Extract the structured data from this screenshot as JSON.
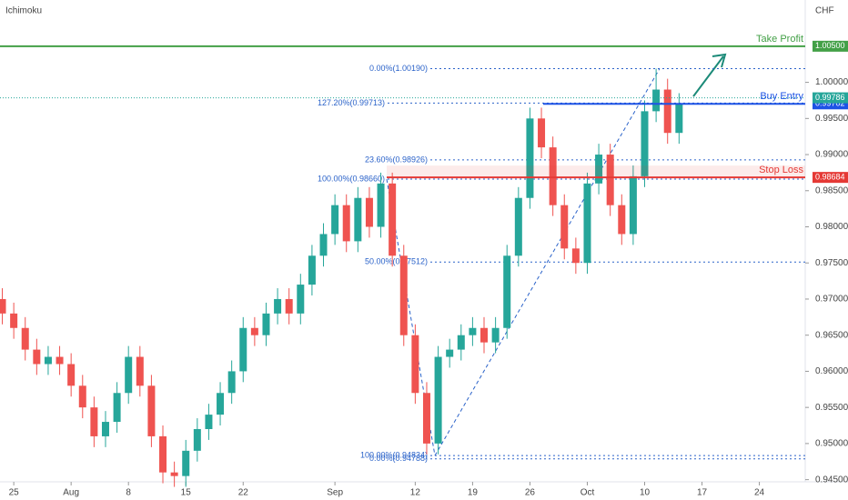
{
  "chart_data": {
    "type": "candlestick",
    "title": "Ichimoku",
    "currency": "CHF",
    "up_color": "#26a69a",
    "down_color": "#ef5350",
    "xlim": [
      -0.2,
      70
    ],
    "ylim": [
      0.9447,
      1.0114
    ],
    "xticks": [
      {
        "value": 1,
        "label": "25"
      },
      {
        "value": 6,
        "label": "Aug"
      },
      {
        "value": 11,
        "label": "8"
      },
      {
        "value": 16,
        "label": "15"
      },
      {
        "value": 21,
        "label": "22"
      },
      {
        "value": 29,
        "label": "Sep"
      },
      {
        "value": 36,
        "label": "12"
      },
      {
        "value": 41,
        "label": "19"
      },
      {
        "value": 46,
        "label": "26"
      },
      {
        "value": 51,
        "label": "Oct"
      },
      {
        "value": 56,
        "label": "10"
      },
      {
        "value": 61,
        "label": "17"
      },
      {
        "value": 66,
        "label": "24"
      }
    ],
    "yticks": [
      {
        "value": 0.945,
        "label": "0.94500"
      },
      {
        "value": 0.95,
        "label": "0.95000"
      },
      {
        "value": 0.955,
        "label": "0.95500"
      },
      {
        "value": 0.96,
        "label": "0.96000"
      },
      {
        "value": 0.965,
        "label": "0.96500"
      },
      {
        "value": 0.97,
        "label": "0.97000"
      },
      {
        "value": 0.975,
        "label": "0.97500"
      },
      {
        "value": 0.98,
        "label": "0.98000"
      },
      {
        "value": 0.985,
        "label": "0.98500"
      },
      {
        "value": 0.99,
        "label": "0.99000"
      },
      {
        "value": 0.995,
        "label": "0.99500"
      },
      {
        "value": 1.0,
        "label": "1.00000"
      }
    ],
    "open": [
      0.97,
      0.968,
      0.966,
      0.963,
      0.961,
      0.962,
      0.961,
      0.958,
      0.955,
      0.951,
      0.953,
      0.957,
      0.962,
      0.958,
      0.951,
      0.946,
      0.9455,
      0.949,
      0.952,
      0.954,
      0.957,
      0.96,
      0.966,
      0.965,
      0.968,
      0.97,
      0.968,
      0.972,
      0.976,
      0.979,
      0.983,
      0.978,
      0.984,
      0.98,
      0.986,
      0.976,
      0.965,
      0.957,
      0.95,
      0.962,
      0.963,
      0.965,
      0.966,
      0.964,
      0.966,
      0.976,
      0.984,
      0.995,
      0.991,
      0.983,
      0.977,
      0.975,
      0.986,
      0.99,
      0.983,
      0.979,
      0.987,
      0.996,
      0.999,
      0.993
    ],
    "high": [
      0.9715,
      0.9695,
      0.9675,
      0.9645,
      0.9635,
      0.9635,
      0.9625,
      0.9595,
      0.9565,
      0.9545,
      0.9585,
      0.9635,
      0.9635,
      0.9595,
      0.9525,
      0.9475,
      0.9505,
      0.9535,
      0.9555,
      0.9585,
      0.9615,
      0.9675,
      0.9675,
      0.9695,
      0.9715,
      0.9715,
      0.9735,
      0.9775,
      0.9805,
      0.9845,
      0.9845,
      0.9855,
      0.9855,
      0.9875,
      0.9875,
      0.9775,
      0.9665,
      0.9585,
      0.9635,
      0.9645,
      0.9665,
      0.9675,
      0.9675,
      0.9675,
      0.9775,
      0.9855,
      0.9965,
      0.9965,
      0.9925,
      0.9845,
      0.9785,
      0.9875,
      0.9915,
      0.9915,
      0.9845,
      0.9885,
      0.9975,
      1.0019,
      1.0005,
      0.9985
    ],
    "low": [
      0.9665,
      0.9645,
      0.9615,
      0.9595,
      0.9595,
      0.9595,
      0.9565,
      0.9535,
      0.9495,
      0.9495,
      0.9515,
      0.9555,
      0.9565,
      0.9495,
      0.9445,
      0.944,
      0.944,
      0.9475,
      0.9505,
      0.9525,
      0.9555,
      0.9585,
      0.9635,
      0.9635,
      0.9665,
      0.9665,
      0.9665,
      0.9705,
      0.9745,
      0.9775,
      0.9765,
      0.9765,
      0.9785,
      0.9785,
      0.9745,
      0.9635,
      0.9555,
      0.9485,
      0.9485,
      0.9605,
      0.9615,
      0.9635,
      0.9625,
      0.9625,
      0.9645,
      0.9745,
      0.9825,
      0.9895,
      0.9815,
      0.9755,
      0.9735,
      0.9735,
      0.9845,
      0.9815,
      0.9775,
      0.9775,
      0.9855,
      0.9945,
      0.9915,
      0.9915
    ],
    "close": [
      0.968,
      0.966,
      0.963,
      0.961,
      0.962,
      0.961,
      0.958,
      0.955,
      0.951,
      0.953,
      0.957,
      0.962,
      0.958,
      0.951,
      0.946,
      0.9455,
      0.949,
      0.952,
      0.954,
      0.957,
      0.96,
      0.966,
      0.965,
      0.968,
      0.97,
      0.968,
      0.972,
      0.976,
      0.979,
      0.983,
      0.978,
      0.984,
      0.98,
      0.986,
      0.976,
      0.965,
      0.957,
      0.95,
      0.962,
      0.963,
      0.965,
      0.966,
      0.964,
      0.966,
      0.976,
      0.984,
      0.995,
      0.991,
      0.983,
      0.977,
      0.975,
      0.986,
      0.99,
      0.983,
      0.979,
      0.987,
      0.996,
      0.999,
      0.993,
      0.997
    ],
    "levels": [
      {
        "name": "Take Profit",
        "value": 1.005,
        "value_label": "1.00500",
        "color": "#43a047"
      },
      {
        "name": "Buy Entry",
        "value": 0.99702,
        "value_label": "0.99702",
        "color": "#1e53e5"
      },
      {
        "name": "Stop Loss",
        "value": 0.98684,
        "value_label": "0.98684",
        "color": "#e53935"
      }
    ],
    "last_price": {
      "value": 0.99786,
      "label": "0.99786",
      "color": "#26a69a"
    },
    "fib_levels": [
      {
        "label": "0.00%(1.00190)",
        "value": 1.0019
      },
      {
        "label": "127.20%(0.99713)",
        "value": 0.99713
      },
      {
        "label": "23.60%(0.98926)",
        "value": 0.98926
      },
      {
        "label": "100.00%(0.98660)",
        "value": 0.9866
      },
      {
        "label": "50.00%(0.97512)",
        "value": 0.97512
      },
      {
        "label": "100.00%(0.94834)",
        "value": 0.94834
      },
      {
        "label": "0.00%(0.94788)",
        "value": 0.94788
      }
    ]
  }
}
